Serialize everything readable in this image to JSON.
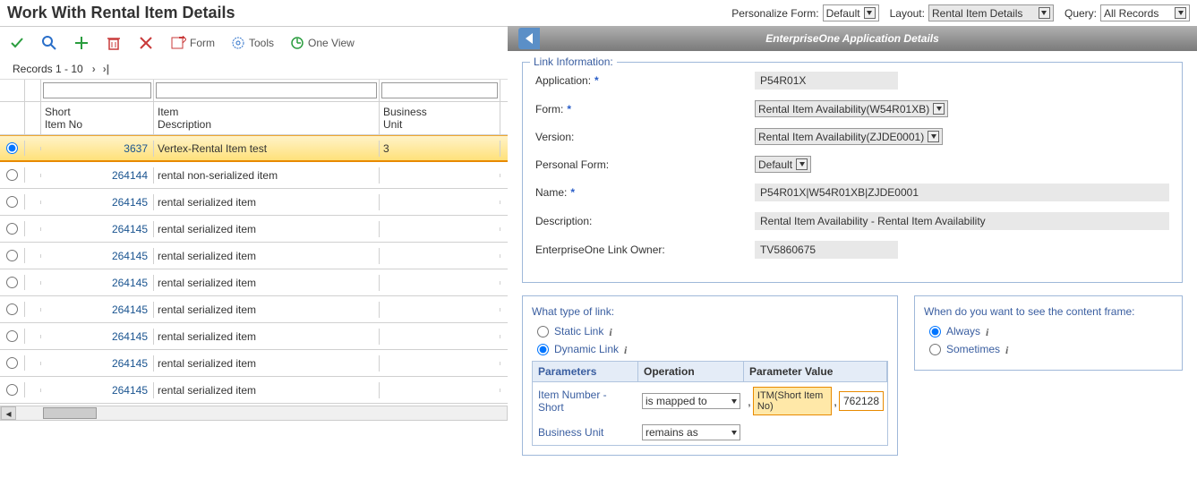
{
  "page_title": "Work With Rental Item Details",
  "top": {
    "personalize_label": "Personalize Form:",
    "personalize_value": "Default",
    "layout_label": "Layout:",
    "layout_value": "Rental Item Details",
    "query_label": "Query:",
    "query_value": "All Records"
  },
  "toolbar": {
    "form": "Form",
    "tools": "Tools",
    "one_view": "One View"
  },
  "records_text": "Records 1 - 10",
  "columns": {
    "short_no": "Short\nItem No",
    "desc": "Item\nDescription",
    "bu": "Business\nUnit"
  },
  "rows": [
    {
      "no": "3637",
      "desc": "Vertex-Rental Item test",
      "bu": "3",
      "selected": true
    },
    {
      "no": "264144",
      "desc": "rental non-serialized item",
      "bu": "",
      "selected": false
    },
    {
      "no": "264145",
      "desc": "rental serialized item",
      "bu": "",
      "selected": false
    },
    {
      "no": "264145",
      "desc": "rental serialized item",
      "bu": "",
      "selected": false
    },
    {
      "no": "264145",
      "desc": "rental serialized item",
      "bu": "",
      "selected": false
    },
    {
      "no": "264145",
      "desc": "rental serialized item",
      "bu": "",
      "selected": false
    },
    {
      "no": "264145",
      "desc": "rental serialized item",
      "bu": "",
      "selected": false
    },
    {
      "no": "264145",
      "desc": "rental serialized item",
      "bu": "",
      "selected": false
    },
    {
      "no": "264145",
      "desc": "rental serialized item",
      "bu": "",
      "selected": false
    },
    {
      "no": "264145",
      "desc": "rental serialized item",
      "bu": "",
      "selected": false
    }
  ],
  "panel_title": "EnterpriseOne Application Details",
  "link_info": {
    "title": "Link Information:",
    "application_label": "Application:",
    "application_value": "P54R01X",
    "form_label": "Form:",
    "form_value": "Rental Item Availability(W54R01XB)",
    "version_label": "Version:",
    "version_value": "Rental Item Availability(ZJDE0001)",
    "personal_form_label": "Personal Form:",
    "personal_form_value": "Default",
    "name_label": "Name:",
    "name_value": "P54R01X|W54R01XB|ZJDE0001",
    "description_label": "Description:",
    "description_value": "Rental Item Availability - Rental Item Availability",
    "owner_label": "EnterpriseOne Link Owner:",
    "owner_value": "TV5860675"
  },
  "link_type": {
    "title": "What type of link:",
    "static": "Static Link",
    "dynamic": "Dynamic Link",
    "param_h1": "Parameters",
    "param_h2": "Operation",
    "param_h3": "Parameter Value",
    "p1_name": "Item Number - Short",
    "p1_op": "is mapped to",
    "p1_map": "ITM(Short Item No)",
    "p1_val": "762128",
    "p2_name": "Business Unit",
    "p2_op": "remains as"
  },
  "content_frame": {
    "title": "When do you want to see the content frame:",
    "always": "Always",
    "sometimes": "Sometimes"
  }
}
